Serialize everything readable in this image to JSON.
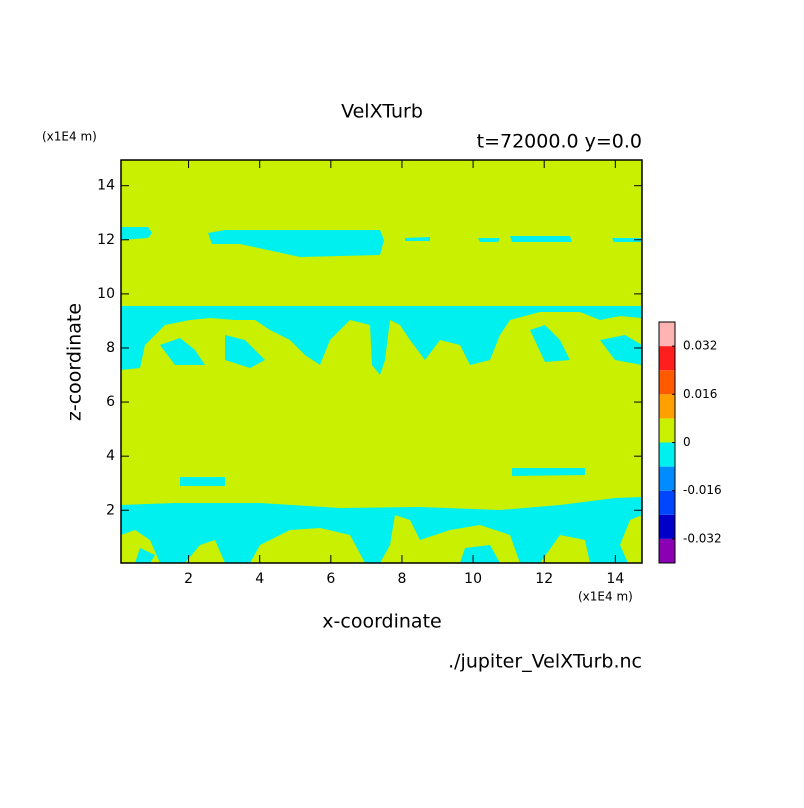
{
  "chart_data": {
    "type": "contour",
    "title": "VelXTurb",
    "subtitle": "t=72000.0 y=0.0",
    "x_label": "x-coordinate",
    "y_label": "z-coordinate",
    "x_unit": "(x1E4 m)",
    "y_unit": "(x1E4 m)",
    "source": "./jupiter_VelXTurb.nc",
    "xlim": [
      0.1,
      14.75
    ],
    "ylim": [
      0.05,
      14.95
    ],
    "xticks": [
      2,
      4,
      6,
      8,
      10,
      12,
      14
    ],
    "yticks": [
      2,
      4,
      6,
      8,
      10,
      12,
      14
    ],
    "background_color": "#c8f000",
    "region_color": "#00f0f0",
    "colorbar": {
      "lim": [
        -0.04,
        0.04
      ],
      "colors": [
        "#8c00b4",
        "#0000c8",
        "#0046ff",
        "#008cff",
        "#00f0f0",
        "#c8f000",
        "#ffa000",
        "#ff5a00",
        "#ff1e1e",
        "#ffb4b4"
      ],
      "ticks": [
        -0.032,
        -0.016,
        0,
        0.016,
        0.032
      ]
    }
  }
}
